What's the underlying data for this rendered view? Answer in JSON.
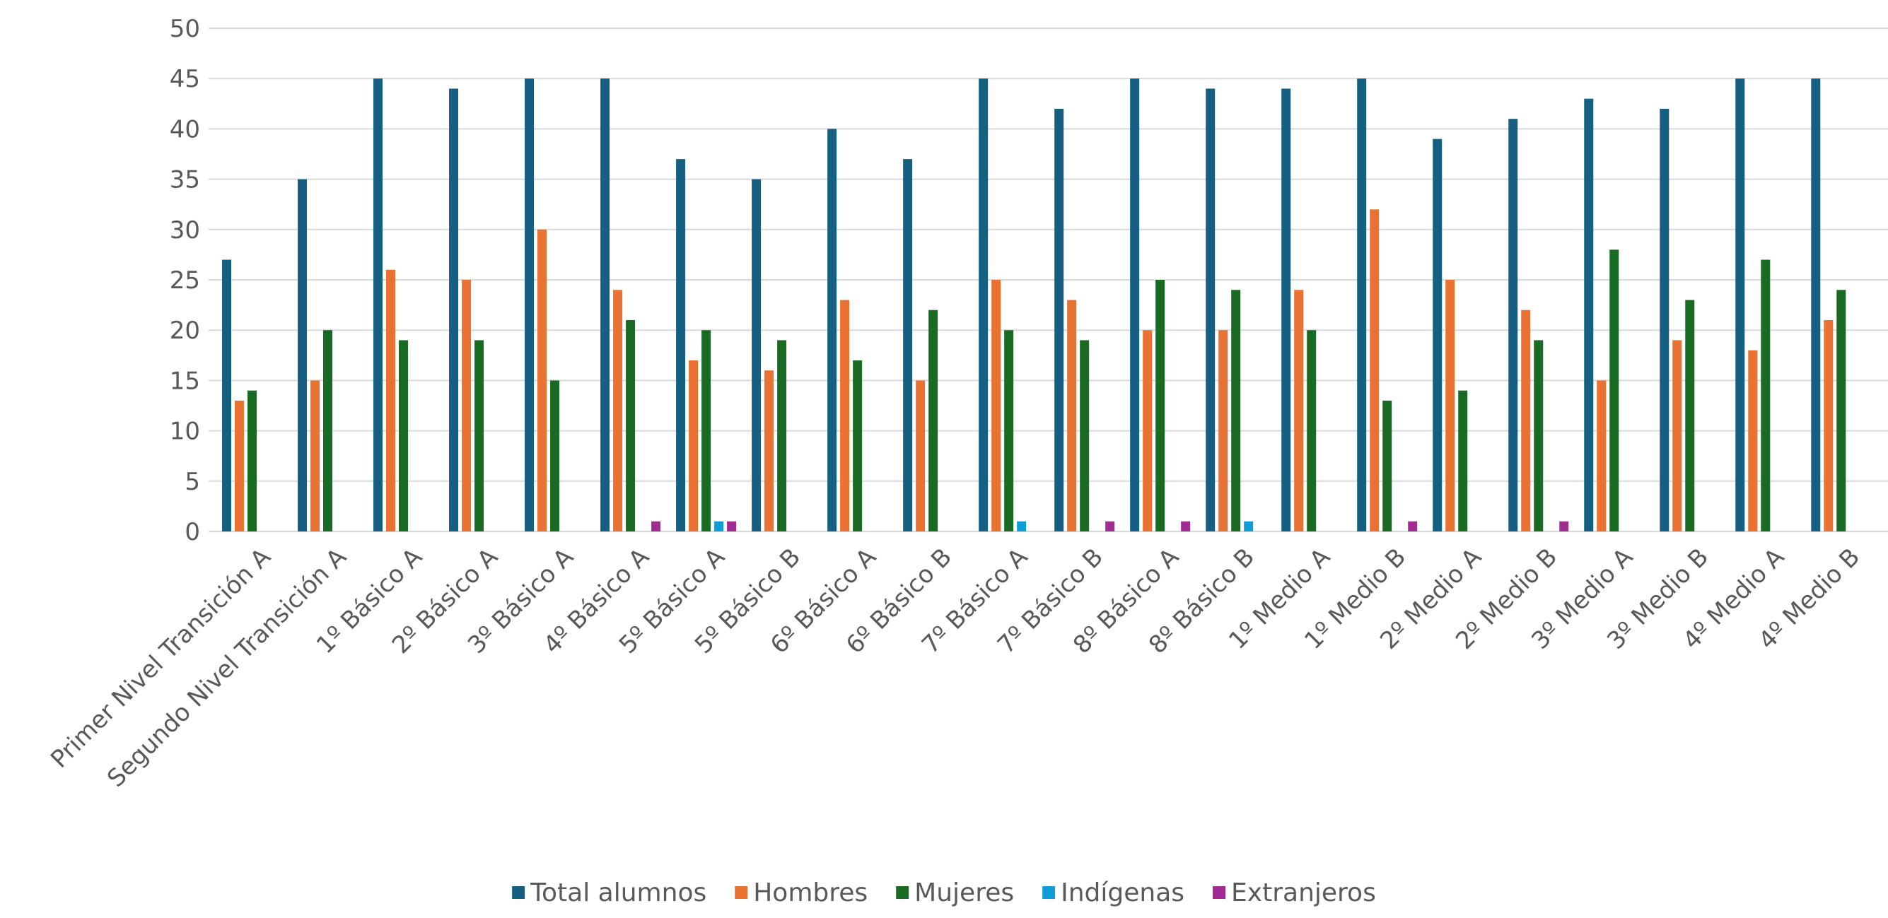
{
  "chart_data": {
    "type": "bar",
    "title": "",
    "xlabel": "",
    "ylabel": "",
    "ylim": [
      0,
      50
    ],
    "yticks": [
      0,
      5,
      10,
      15,
      20,
      25,
      30,
      35,
      40,
      45,
      50
    ],
    "grid": true,
    "legend_position": "bottom",
    "categories": [
      "Primer Nivel Transición A",
      "Segundo Nivel Transición A",
      "1º Básico A",
      "2º Básico A",
      "3º Básico A",
      "4º Básico A",
      "5º Básico A",
      "5º Básico B",
      "6º Básico A",
      "6º Básico B",
      "7º Básico A",
      "7º Básico B",
      "8º Básico A",
      "8º Básico B",
      "1º Medio A",
      "1º Medio B",
      "2º Medio A",
      "2º Medio B",
      "3º Medio A",
      "3º Medio B",
      "4º Medio A",
      "4º Medio B"
    ],
    "series": [
      {
        "name": "Total alumnos",
        "color": "#156082",
        "values": [
          27,
          35,
          45,
          44,
          45,
          45,
          37,
          35,
          40,
          37,
          45,
          42,
          45,
          44,
          44,
          45,
          39,
          41,
          43,
          42,
          45,
          45
        ]
      },
      {
        "name": "Hombres",
        "color": "#E97132",
        "values": [
          13,
          15,
          26,
          25,
          30,
          24,
          17,
          16,
          23,
          15,
          25,
          23,
          20,
          20,
          24,
          32,
          25,
          22,
          15,
          19,
          18,
          21
        ]
      },
      {
        "name": "Mujeres",
        "color": "#196B24",
        "values": [
          14,
          20,
          19,
          19,
          15,
          21,
          20,
          19,
          17,
          22,
          20,
          19,
          25,
          24,
          20,
          13,
          14,
          19,
          28,
          23,
          27,
          24
        ]
      },
      {
        "name": "Indígenas",
        "color": "#0F9ED5",
        "values": [
          0,
          0,
          0,
          0,
          0,
          0,
          1,
          0,
          0,
          0,
          1,
          0,
          0,
          1,
          0,
          0,
          0,
          0,
          0,
          0,
          0,
          0
        ]
      },
      {
        "name": "Extranjeros",
        "color": "#A02B93",
        "values": [
          0,
          0,
          0,
          0,
          0,
          1,
          1,
          0,
          0,
          0,
          0,
          1,
          1,
          0,
          0,
          1,
          0,
          1,
          0,
          0,
          0,
          0
        ]
      }
    ]
  }
}
